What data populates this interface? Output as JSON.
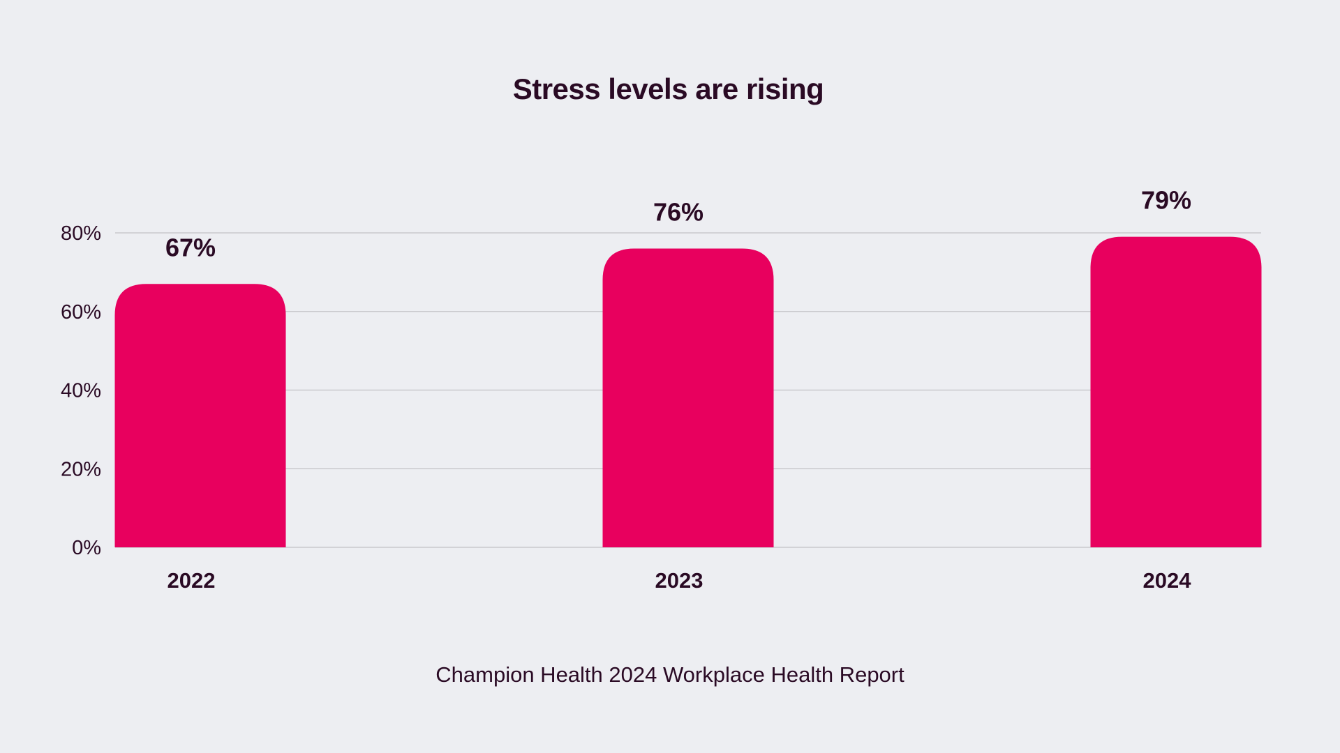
{
  "title": "Stress levels are rising",
  "source": "Champion Health 2024 Workplace Health Report",
  "colors": {
    "bar": "#e8005e",
    "text": "#2a0a24",
    "grid": "#c9c9cd",
    "background": "#edeef2"
  },
  "chart_data": {
    "type": "bar",
    "categories": [
      "2022",
      "2023",
      "2024"
    ],
    "values": [
      67,
      76,
      79
    ],
    "value_labels": [
      "67%",
      "76%",
      "79%"
    ],
    "y_ticks": [
      0,
      20,
      40,
      60,
      80
    ],
    "y_tick_labels": [
      "0%",
      "20%",
      "40%",
      "60%",
      "80%"
    ],
    "ylim": [
      0,
      80
    ],
    "grid": true,
    "legend": "none",
    "title": "Stress levels are rising"
  }
}
